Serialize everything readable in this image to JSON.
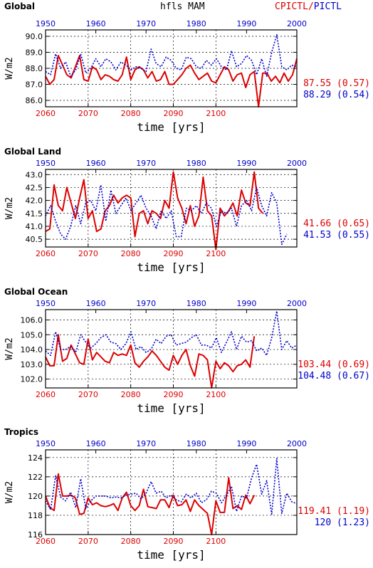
{
  "figure": {
    "center_title": "hfls MAM",
    "right_title_red": "CPICTL",
    "right_title_sep": "/",
    "right_title_blue": "PICTL",
    "colors": {
      "red": "#dd0000",
      "blue": "#0000cc",
      "grid": "#000000"
    }
  },
  "chart_data": [
    {
      "type": "line",
      "title": "Global",
      "xlabel": "time [yrs]",
      "ylabel": "W/m2",
      "bottom_axis": {
        "range": [
          2060,
          2119
        ],
        "ticks": [
          "2060",
          "2070",
          "2080",
          "2090",
          "2100"
        ],
        "color": "#dd0000"
      },
      "top_axis": {
        "range": [
          1950,
          2000
        ],
        "ticks": [
          "1950",
          "1960",
          "1970",
          "1980",
          "1990",
          "2000"
        ],
        "color": "#0000cc"
      },
      "ylim": [
        85.6,
        90.4
      ],
      "yticks": [
        "86.0",
        "87.0",
        "88.0",
        "89.0",
        "90.0"
      ],
      "grid": true,
      "stat_red": "87.55 (0.57)",
      "stat_blue": "88.29 (0.54)",
      "series": [
        {
          "axis": "bottom",
          "style": "solid",
          "color": "#dd0000",
          "x_start": 2060,
          "values": [
            87.5,
            87.0,
            87.3,
            88.8,
            88.2,
            87.6,
            87.4,
            88.1,
            88.8,
            87.3,
            87.2,
            88.1,
            87.9,
            87.3,
            87.6,
            87.5,
            87.3,
            87.2,
            87.6,
            88.7,
            87.3,
            87.9,
            88.1,
            87.9,
            87.4,
            87.8,
            87.2,
            87.3,
            87.8,
            87.0,
            87.0,
            87.3,
            87.6,
            88.0,
            88.2,
            87.7,
            87.3,
            87.5,
            87.7,
            87.2,
            87.1,
            87.6,
            88.1,
            87.9,
            87.2,
            87.6,
            87.7,
            86.8,
            87.6,
            87.8,
            85.6,
            87.7,
            87.7,
            87.2,
            87.5,
            87.1,
            87.7,
            87.2,
            87.6,
            88.6
          ]
        },
        {
          "axis": "top",
          "style": "dotted",
          "color": "#0000cc",
          "x_start": 1950,
          "values": [
            87.8,
            87.6,
            88.9,
            88.0,
            88.4,
            87.5,
            87.9,
            88.9,
            87.7,
            88.0,
            88.6,
            88.1,
            88.6,
            88.4,
            87.9,
            88.4,
            88.2,
            87.9,
            88.1,
            88.0,
            87.8,
            89.2,
            88.3,
            88.1,
            88.7,
            88.5,
            88.0,
            87.9,
            88.7,
            88.6,
            88.1,
            88.0,
            88.5,
            88.2,
            88.6,
            88.1,
            87.9,
            89.1,
            88.1,
            88.3,
            88.8,
            88.5,
            87.6,
            88.6,
            87.5,
            89.0,
            90.1,
            88.1,
            87.9,
            88.2,
            88.1
          ]
        }
      ]
    },
    {
      "type": "line",
      "title": "Global Land",
      "xlabel": "time [yrs]",
      "ylabel": "W/m2",
      "bottom_axis": {
        "range": [
          2060,
          2119
        ],
        "ticks": [
          "2060",
          "2070",
          "2080",
          "2090",
          "2100"
        ],
        "color": "#dd0000"
      },
      "top_axis": {
        "range": [
          1950,
          2000
        ],
        "ticks": [
          "1950",
          "1960",
          "1970",
          "1980",
          "1990",
          "2000"
        ],
        "color": "#0000cc"
      },
      "ylim": [
        40.2,
        43.2
      ],
      "yticks": [
        "40.5",
        "41.0",
        "41.5",
        "42.0",
        "42.5",
        "43.0"
      ],
      "grid": true,
      "stat_red": "41.66 (0.65)",
      "stat_blue": "41.53 (0.55)",
      "series": [
        {
          "axis": "bottom",
          "style": "solid",
          "color": "#dd0000",
          "x_start": 2060,
          "values": [
            40.8,
            40.9,
            42.6,
            41.8,
            41.6,
            42.5,
            41.9,
            41.3,
            42.1,
            42.8,
            41.3,
            41.6,
            40.8,
            40.9,
            41.6,
            41.8,
            42.2,
            41.9,
            42.1,
            42.2,
            42.1,
            40.6,
            41.5,
            41.6,
            41.1,
            41.6,
            41.5,
            41.3,
            42.0,
            41.7,
            43.1,
            42.1,
            41.7,
            41.1,
            41.8,
            41.0,
            41.4,
            42.9,
            41.6,
            41.4,
            40.1,
            41.7,
            41.4,
            41.6,
            41.9,
            41.4,
            42.4,
            41.9,
            41.8,
            43.1,
            41.7,
            41.5
          ]
        },
        {
          "axis": "top",
          "style": "dotted",
          "color": "#0000cc",
          "x_start": 1950,
          "values": [
            41.4,
            41.8,
            41.2,
            40.7,
            40.5,
            41.0,
            41.8,
            41.1,
            41.9,
            42.0,
            41.6,
            42.6,
            41.2,
            42.4,
            41.5,
            41.8,
            42.1,
            41.6,
            41.9,
            42.2,
            41.7,
            41.4,
            40.9,
            41.6,
            41.3,
            41.6,
            40.6,
            40.6,
            41.7,
            41.6,
            41.8,
            41.5,
            41.9,
            41.7,
            41.0,
            41.6,
            41.5,
            41.7,
            41.0,
            41.8,
            42.0,
            41.6,
            42.5,
            41.8,
            41.4,
            42.3,
            41.9,
            40.3,
            40.7
          ]
        }
      ]
    },
    {
      "type": "line",
      "title": "Global Ocean",
      "xlabel": "time [yrs]",
      "ylabel": "W/m2",
      "bottom_axis": {
        "range": [
          2060,
          2119
        ],
        "ticks": [
          "2060",
          "2070",
          "2080",
          "2090",
          "2100"
        ],
        "color": "#dd0000"
      },
      "top_axis": {
        "range": [
          1950,
          2000
        ],
        "ticks": [
          "1950",
          "1960",
          "1970",
          "1980",
          "1990",
          "2000"
        ],
        "color": "#0000cc"
      },
      "ylim": [
        101.4,
        106.7
      ],
      "yticks": [
        "102.0",
        "103.0",
        "104.0",
        "105.0",
        "106.0"
      ],
      "grid": true,
      "stat_red": "103.44 (0.69)",
      "stat_blue": "104.48 (0.67)",
      "series": [
        {
          "axis": "bottom",
          "style": "solid",
          "color": "#dd0000",
          "x_start": 2060,
          "values": [
            103.5,
            102.9,
            102.9,
            105.0,
            103.2,
            103.4,
            104.3,
            103.7,
            103.1,
            103.0,
            104.7,
            103.3,
            103.8,
            103.5,
            103.2,
            103.1,
            103.8,
            103.6,
            103.7,
            103.6,
            104.3,
            103.1,
            102.8,
            103.2,
            103.5,
            103.9,
            103.6,
            103.2,
            102.8,
            102.6,
            103.6,
            103.0,
            103.6,
            104.0,
            102.9,
            102.2,
            103.7,
            103.6,
            103.3,
            101.4,
            103.2,
            102.7,
            103.1,
            102.9,
            102.5,
            102.9,
            103.0,
            103.3,
            102.8,
            104.9
          ]
        },
        {
          "axis": "top",
          "style": "dotted",
          "color": "#0000cc",
          "x_start": 1950,
          "values": [
            103.9,
            103.6,
            105.2,
            104.0,
            104.0,
            104.2,
            103.8,
            105.0,
            104.5,
            104.1,
            104.4,
            104.8,
            105.0,
            104.5,
            104.4,
            104.0,
            104.4,
            105.2,
            104.0,
            104.2,
            103.8,
            104.0,
            104.7,
            104.4,
            104.9,
            105.0,
            104.3,
            104.4,
            104.5,
            104.8,
            105.0,
            104.3,
            104.3,
            104.1,
            104.8,
            103.8,
            104.5,
            105.2,
            104.0,
            104.9,
            104.5,
            104.6,
            103.9,
            104.1,
            103.6,
            104.8,
            106.6,
            104.0,
            104.6,
            104.1,
            104.3
          ]
        }
      ]
    },
    {
      "type": "line",
      "title": "Tropics",
      "xlabel": "time [yrs]",
      "ylabel": "W/m2",
      "bottom_axis": {
        "range": [
          2060,
          2119
        ],
        "ticks": [
          "2060",
          "2070",
          "2080",
          "2090",
          "2100"
        ],
        "color": "#dd0000"
      },
      "top_axis": {
        "range": [
          1950,
          2000
        ],
        "ticks": [
          "1950",
          "1960",
          "1970",
          "1980",
          "1990",
          "2000"
        ],
        "color": "#0000cc"
      },
      "ylim": [
        116,
        124.8
      ],
      "yticks": [
        "116",
        "118",
        "120",
        "122",
        "124"
      ],
      "grid": true,
      "stat_red": "119.41 (1.19)",
      "stat_blue": "120 (1.23)",
      "series": [
        {
          "axis": "bottom",
          "style": "solid",
          "color": "#dd0000",
          "x_start": 2060,
          "values": [
            120.0,
            118.8,
            118.5,
            122.3,
            120.0,
            120.0,
            120.1,
            119.8,
            118.1,
            118.2,
            119.8,
            119.1,
            119.3,
            119.0,
            118.9,
            119.0,
            119.2,
            118.5,
            119.8,
            120.4,
            119.0,
            118.5,
            119.0,
            120.7,
            118.9,
            118.8,
            118.7,
            119.6,
            119.6,
            118.8,
            120.1,
            119.0,
            119.1,
            119.6,
            118.4,
            119.6,
            119.0,
            118.6,
            118.2,
            116.0,
            119.5,
            118.3,
            118.3,
            121.9,
            118.7,
            119.0,
            118.6,
            120.1,
            119.2,
            120.1
          ]
        },
        {
          "axis": "top",
          "style": "dotted",
          "color": "#0000cc",
          "x_start": 1950,
          "values": [
            119.5,
            118.6,
            122.1,
            119.9,
            119.5,
            120.4,
            118.8,
            121.8,
            118.7,
            119.5,
            120.0,
            120.0,
            120.0,
            119.8,
            119.9,
            119.8,
            120.1,
            120.2,
            120.3,
            119.7,
            120.3,
            121.5,
            120.3,
            120.5,
            119.8,
            120.1,
            119.6,
            119.4,
            120.2,
            119.8,
            120.3,
            119.3,
            119.6,
            120.5,
            120.3,
            119.3,
            120.1,
            121.0,
            118.4,
            120.0,
            119.8,
            121.9,
            123.3,
            120.2,
            121.6,
            118.1,
            123.9,
            118.2,
            120.3,
            119.4,
            119.2
          ]
        }
      ]
    }
  ]
}
